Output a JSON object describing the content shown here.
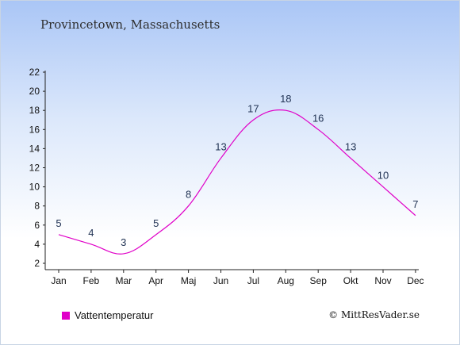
{
  "header": {
    "location": "Provincetown, Massachusetts"
  },
  "chart_data": {
    "type": "line",
    "categories": [
      "Jan",
      "Feb",
      "Mar",
      "Apr",
      "Maj",
      "Jun",
      "Jul",
      "Aug",
      "Sep",
      "Okt",
      "Nov",
      "Dec"
    ],
    "series": [
      {
        "name": "Vattentemperatur",
        "values": [
          5,
          4,
          3,
          5,
          8,
          13,
          17,
          18,
          16,
          13,
          10,
          7
        ],
        "color": "#e000c8"
      }
    ],
    "yticks": [
      2,
      4,
      6,
      8,
      10,
      12,
      14,
      16,
      18,
      20,
      22
    ],
    "ylim": [
      2,
      22
    ],
    "grid": false,
    "legend_position": "bottom-left"
  },
  "footer": {
    "credit": "© MittResVader.se"
  }
}
